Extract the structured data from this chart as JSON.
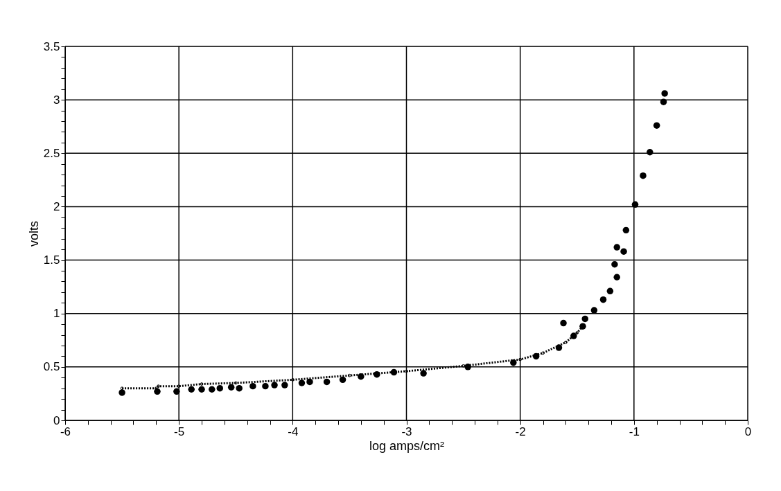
{
  "chart_data": {
    "type": "scatter",
    "xlabel": "log amps/cm²",
    "ylabel": "volts",
    "xlim": [
      -6,
      0
    ],
    "ylim": [
      0,
      3.5
    ],
    "xticks": [
      -6,
      {
        "value": -5.8,
        "label": null
      },
      {
        "value": -5.6,
        "label": null
      },
      {
        "value": -5.4,
        "label": null
      },
      {
        "value": -5.2,
        "label": null
      },
      -5,
      {
        "value": -4.8,
        "label": null
      },
      {
        "value": -4.6,
        "label": null
      },
      {
        "value": -4.4,
        "label": null
      },
      {
        "value": -4.2,
        "label": null
      },
      -4,
      {
        "value": -3.8,
        "label": null
      },
      {
        "value": -3.6,
        "label": null
      },
      {
        "value": -3.4,
        "label": null
      },
      {
        "value": -3.2,
        "label": null
      },
      -3,
      {
        "value": -2.8,
        "label": null
      },
      {
        "value": -2.6,
        "label": null
      },
      {
        "value": -2.4,
        "label": null
      },
      {
        "value": -2.2,
        "label": null
      },
      -2,
      {
        "value": -1.8,
        "label": null
      },
      {
        "value": -1.6,
        "label": null
      },
      {
        "value": -1.4,
        "label": null
      },
      {
        "value": -1.2,
        "label": null
      },
      -1,
      {
        "value": -0.8,
        "label": null
      },
      {
        "value": -0.6,
        "label": null
      },
      {
        "value": -0.4,
        "label": null
      },
      {
        "value": -0.2,
        "label": null
      },
      0
    ],
    "yticks": [
      0,
      {
        "value": 0.1,
        "label": null
      },
      {
        "value": 0.2,
        "label": null
      },
      {
        "value": 0.3,
        "label": null
      },
      {
        "value": 0.4,
        "label": null
      },
      0.5,
      {
        "value": 0.6,
        "label": null
      },
      {
        "value": 0.7,
        "label": null
      },
      {
        "value": 0.8,
        "label": null
      },
      {
        "value": 0.9,
        "label": null
      },
      1,
      {
        "value": 1.1,
        "label": null
      },
      {
        "value": 1.2,
        "label": null
      },
      {
        "value": 1.3,
        "label": null
      },
      {
        "value": 1.4,
        "label": null
      },
      1.5,
      {
        "value": 1.6,
        "label": null
      },
      {
        "value": 1.7,
        "label": null
      },
      {
        "value": 1.8,
        "label": null
      },
      {
        "value": 1.9,
        "label": null
      },
      2,
      {
        "value": 2.1,
        "label": null
      },
      {
        "value": 2.2,
        "label": null
      },
      {
        "value": 2.3,
        "label": null
      },
      {
        "value": 2.4,
        "label": null
      },
      2.5,
      {
        "value": 2.6,
        "label": null
      },
      {
        "value": 2.7,
        "label": null
      },
      {
        "value": 2.8,
        "label": null
      },
      {
        "value": 2.9,
        "label": null
      },
      3,
      {
        "value": 3.1,
        "label": null
      },
      {
        "value": 3.2,
        "label": null
      },
      {
        "value": 3.3,
        "label": null
      },
      {
        "value": 3.4,
        "label": null
      },
      3.5
    ],
    "grid": true,
    "marker": "circle",
    "series": [
      {
        "color": "#000000",
        "x": [
          -5.5,
          -5.19,
          -5.02,
          -4.89,
          -4.8,
          -4.71,
          -4.64,
          -4.54,
          -4.47,
          -4.35,
          -4.24,
          -4.16,
          -4.07,
          -3.92,
          -3.85,
          -3.7,
          -3.56,
          -3.4,
          -3.26,
          -3.11,
          -2.85,
          -2.46,
          -2.06,
          -1.86,
          -1.66,
          -1.62,
          -1.53,
          -1.45,
          -1.43,
          -1.35,
          -1.27,
          -1.21,
          -1.15,
          -1.17,
          -1.09,
          -1.15,
          -1.07,
          -0.99,
          -0.92,
          -0.86,
          -0.8,
          -0.74,
          -0.73
        ],
        "values": [
          0.26,
          0.27,
          0.27,
          0.29,
          0.29,
          0.29,
          0.3,
          0.31,
          0.3,
          0.32,
          0.32,
          0.33,
          0.33,
          0.35,
          0.36,
          0.36,
          0.38,
          0.41,
          0.43,
          0.45,
          0.44,
          0.5,
          0.54,
          0.6,
          0.68,
          0.91,
          0.79,
          0.88,
          0.95,
          1.03,
          1.13,
          1.21,
          1.34,
          1.46,
          1.58,
          1.62,
          1.78,
          2.02,
          2.29,
          2.51,
          2.76,
          2.98,
          3.06
        ]
      },
      {
        "type": "line",
        "line_style": "dotted",
        "color": "#000000",
        "x": [
          -5.5,
          -5.2,
          -5.18,
          -5.0,
          -4.8,
          -4.5,
          -4.0,
          -3.5,
          -3.0,
          -2.5,
          -2.0,
          -1.8,
          -1.6,
          -1.5,
          -1.45
        ],
        "values": [
          0.3,
          0.3,
          0.32,
          0.32,
          0.34,
          0.35,
          0.38,
          0.42,
          0.46,
          0.51,
          0.57,
          0.63,
          0.73,
          0.82,
          0.88
        ]
      }
    ]
  }
}
